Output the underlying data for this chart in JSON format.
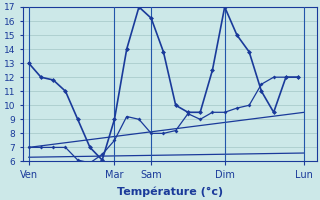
{
  "background_color": "#cce8e8",
  "grid_color": "#aacccc",
  "line_color": "#1a3a9a",
  "xlabel": "Température (°c)",
  "xlabel_fontsize": 8,
  "ylim": [
    6,
    17
  ],
  "yticks": [
    6,
    7,
    8,
    9,
    10,
    11,
    12,
    13,
    14,
    15,
    16,
    17
  ],
  "xlim": [
    0,
    24
  ],
  "day_labels": [
    "Ven",
    "Mar",
    "Sam",
    "Dim",
    "Lun"
  ],
  "day_positions": [
    0.5,
    7.5,
    10.5,
    16.5,
    23.0
  ],
  "vline_positions": [
    0.5,
    7.5,
    10.5,
    16.5,
    23.0
  ],
  "line1_x": [
    0.5,
    1.5,
    2.5,
    3.5,
    4.5,
    5.5,
    6.5,
    7.5,
    8.5,
    9.5,
    10.5,
    11.5,
    12.5,
    13.5,
    14.5,
    15.5,
    16.5,
    17.5,
    18.5,
    19.5,
    20.5,
    21.5,
    22.5
  ],
  "line1_y": [
    13,
    12,
    11.8,
    11,
    9,
    7,
    6.1,
    9,
    14,
    17,
    16.2,
    13.8,
    10,
    9.5,
    9.5,
    12.5,
    17,
    15,
    13.8,
    11,
    9.5,
    12,
    12
  ],
  "line1_markers": true,
  "line2_x": [
    0.5,
    1.5,
    2.5,
    3.5,
    4.5,
    5.5,
    6.5,
    7.5,
    8.5,
    9.5,
    10.5,
    11.5,
    12.5,
    13.5,
    14.5,
    15.5,
    16.5,
    17.5,
    18.5,
    19.5,
    20.5,
    21.5,
    22.5
  ],
  "line2_y": [
    7,
    7,
    7,
    7,
    6.1,
    5.9,
    6.5,
    7.5,
    9.2,
    9,
    8,
    8,
    8.2,
    9.4,
    9,
    9.5,
    9.5,
    9.8,
    10,
    11.5,
    12,
    12,
    12
  ],
  "line2_markers": true,
  "line3_x": [
    0.5,
    23.0
  ],
  "line3_y": [
    6.3,
    6.6
  ],
  "line4_x": [
    0.5,
    23.0
  ],
  "line4_y": [
    7.0,
    9.5
  ]
}
